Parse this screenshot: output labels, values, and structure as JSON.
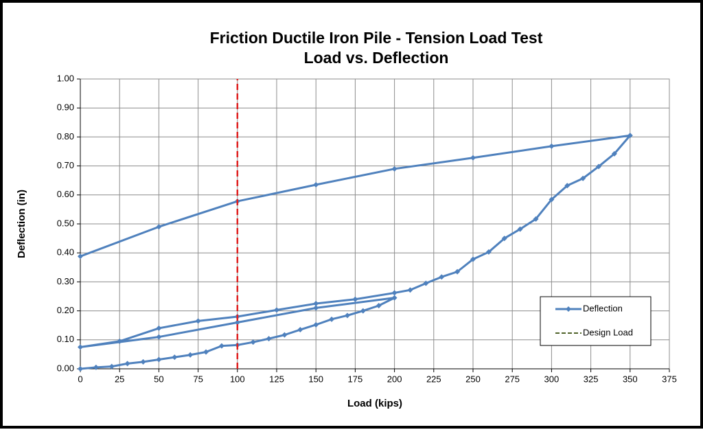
{
  "chart_data": {
    "type": "line",
    "title": "Friction Ductile Iron Pile - Tension Load Test",
    "subtitle": "Load vs. Deflection",
    "x_label": "Load (kips)",
    "y_label": "Deflection (in)",
    "xlim": [
      0,
      375
    ],
    "xticks": [
      0,
      25,
      50,
      75,
      100,
      125,
      150,
      175,
      200,
      225,
      250,
      275,
      300,
      325,
      350,
      375
    ],
    "ylim": [
      0,
      1
    ],
    "yticks": [
      {
        "value": 0,
        "label": "0.00"
      },
      {
        "value": 0.1,
        "label": "0.10"
      },
      {
        "value": 0.2,
        "label": "0.20"
      },
      {
        "value": 0.3,
        "label": "0.30"
      },
      {
        "value": 0.4,
        "label": "0.40"
      },
      {
        "value": 0.5,
        "label": "0.50"
      },
      {
        "value": 0.6,
        "label": "0.60"
      },
      {
        "value": 0.7,
        "label": "0.70"
      },
      {
        "value": 0.8,
        "label": "0.80"
      },
      {
        "value": 0.9,
        "label": "0.90"
      },
      {
        "value": 1,
        "label": "1.00"
      }
    ],
    "grid": true,
    "legend": "lower right",
    "series": [
      {
        "name": "Deflection",
        "color": "#4f81bd",
        "marker": "diamond",
        "x": [
          0,
          10,
          20,
          30,
          40,
          50,
          60,
          70,
          80,
          90,
          100,
          110,
          120,
          130,
          140,
          150,
          160,
          170,
          180,
          190,
          200,
          150,
          100,
          50,
          0,
          25,
          50,
          75,
          100,
          125,
          150,
          175,
          200,
          210,
          220,
          230,
          240,
          250,
          260,
          270,
          280,
          290,
          300,
          310,
          320,
          330,
          340,
          350,
          300,
          250,
          200,
          150,
          100,
          50,
          0
        ],
        "values": [
          0,
          0.005,
          0.008,
          0.018,
          0.024,
          0.032,
          0.04,
          0.048,
          0.058,
          0.079,
          0.082,
          0.092,
          0.104,
          0.117,
          0.135,
          0.152,
          0.171,
          0.184,
          0.2,
          0.218,
          0.245,
          0.21,
          0.16,
          0.11,
          0.075,
          0.095,
          0.14,
          0.165,
          0.18,
          0.203,
          0.225,
          0.24,
          0.262,
          0.272,
          0.295,
          0.317,
          0.335,
          0.378,
          0.403,
          0.45,
          0.482,
          0.517,
          0.584,
          0.632,
          0.657,
          0.698,
          0.742,
          0.805,
          0.768,
          0.728,
          0.69,
          0.635,
          0.578,
          0.49,
          0.388
        ]
      },
      {
        "name": "Design Load",
        "color": "#e02020",
        "legend_color": "#4f6228",
        "dash": true,
        "x": [
          100,
          100
        ],
        "values": [
          0,
          1
        ]
      }
    ]
  }
}
